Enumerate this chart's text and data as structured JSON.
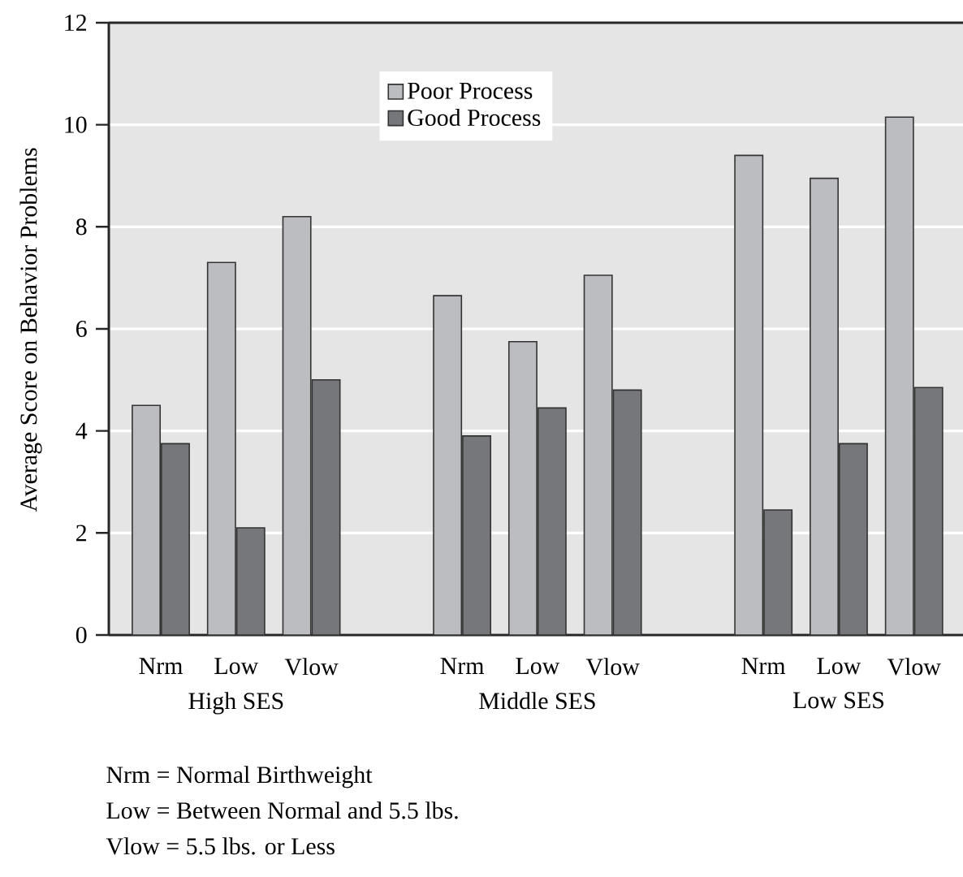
{
  "chart_data": {
    "type": "bar",
    "ylabel": "Average Score on Behavior Problems",
    "categories": [
      "Nrm",
      "Low",
      "Vlow",
      null,
      "Nrm",
      "Low",
      "Vlow",
      null,
      "Nrm",
      "Low",
      "Vlow"
    ],
    "series": [
      {
        "name": "Poor Process",
        "color": "#bcbdc1",
        "values": [
          4.5,
          7.3,
          8.2,
          null,
          6.65,
          5.75,
          7.05,
          null,
          9.4,
          8.95,
          10.15
        ]
      },
      {
        "name": "Good Process",
        "color": "#76777b",
        "values": [
          3.75,
          2.1,
          5.0,
          null,
          3.9,
          4.45,
          4.8,
          null,
          2.45,
          3.75,
          4.85
        ]
      }
    ],
    "ylim": [
      0,
      12
    ],
    "yticks": [
      0,
      2,
      4,
      6,
      8,
      10,
      12
    ],
    "grid": "y",
    "legend": "top",
    "annotations": [
      "High SES",
      "Middle SES",
      "Low SES",
      "Nrm  = Normal Birthweight",
      "Low  = Between Normal and 5.5 lbs.",
      "Vlow = 5.5 lbs. or Less"
    ]
  }
}
